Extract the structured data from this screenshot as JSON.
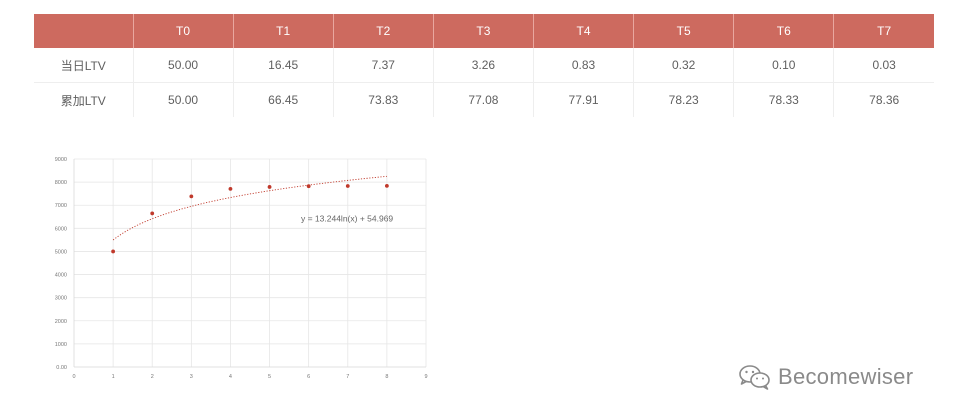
{
  "table": {
    "headers": [
      "",
      "T0",
      "T1",
      "T2",
      "T3",
      "T4",
      "T5",
      "T6",
      "T7"
    ],
    "rows": [
      [
        "当日LTV",
        "50.00",
        "16.45",
        "7.37",
        "3.26",
        "0.83",
        "0.32",
        "0.10",
        "0.03"
      ],
      [
        "累加LTV",
        "50.00",
        "66.45",
        "73.83",
        "77.08",
        "77.91",
        "78.23",
        "78.33",
        "78.36"
      ]
    ]
  },
  "chart_data": {
    "type": "scatter",
    "x": [
      1,
      2,
      3,
      4,
      5,
      6,
      7,
      8
    ],
    "y": [
      5000,
      6645,
      7383,
      7708,
      7791,
      7823,
      7833,
      7836
    ],
    "xlim": [
      0,
      9
    ],
    "ylim": [
      0,
      9000
    ],
    "x_ticks": [
      "0",
      "1",
      "2",
      "3",
      "4",
      "5",
      "6",
      "7",
      "8",
      "9"
    ],
    "y_ticks": [
      "0.00",
      "1000",
      "2000",
      "3000",
      "4000",
      "5000",
      "6000",
      "7000",
      "8000",
      "9000"
    ],
    "grid": true,
    "trendline": {
      "type": "logarithmic",
      "a": 1324.4,
      "b": 5496.9,
      "label": "y = 13.244ln(x) + 54.969"
    },
    "colors": {
      "points": "#c0392b",
      "trend": "#c0392b",
      "grid": "#e6e6e6",
      "axis": "#d9d9d9",
      "ticks": "#777777"
    }
  },
  "watermark": {
    "text": "Becomewiser",
    "icon": "wechat-icon"
  }
}
